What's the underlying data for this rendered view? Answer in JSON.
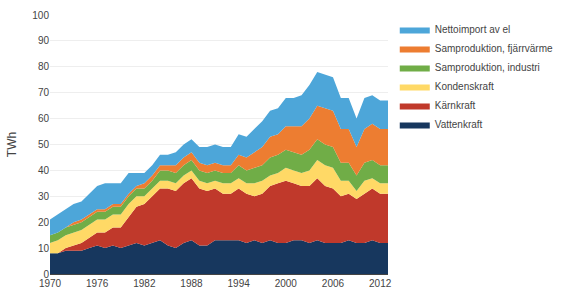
{
  "chart_data": {
    "type": "area",
    "stacked": true,
    "ylabel": "TWh",
    "x": [
      1970,
      1971,
      1972,
      1973,
      1974,
      1975,
      1976,
      1977,
      1978,
      1979,
      1980,
      1981,
      1982,
      1983,
      1984,
      1985,
      1986,
      1987,
      1988,
      1989,
      1990,
      1991,
      1992,
      1993,
      1994,
      1995,
      1996,
      1997,
      1998,
      1999,
      2000,
      2001,
      2002,
      2003,
      2004,
      2005,
      2006,
      2007,
      2008,
      2009,
      2010,
      2011,
      2012,
      2013
    ],
    "series": [
      {
        "name": "Vattenkraft",
        "color": "#17375e",
        "values": [
          8,
          8,
          9,
          9,
          9,
          10,
          11,
          10,
          11,
          10,
          11,
          12,
          11,
          12,
          13,
          11,
          10,
          12,
          13,
          11,
          11,
          13,
          13,
          13,
          13,
          12,
          13,
          12,
          13,
          12,
          12,
          13,
          13,
          12,
          13,
          12,
          12,
          12,
          13,
          12,
          12,
          13,
          12,
          12
        ]
      },
      {
        "name": "Kärnkraft",
        "color": "#c0392b",
        "values": [
          0,
          0,
          1,
          2,
          3,
          4,
          5,
          6,
          7,
          8,
          11,
          14,
          16,
          18,
          20,
          22,
          22,
          23,
          24,
          22,
          21,
          20,
          18,
          18,
          20,
          19,
          17,
          19,
          21,
          23,
          24,
          22,
          21,
          22,
          24,
          22,
          21,
          18,
          18,
          17,
          19,
          20,
          19,
          19
        ]
      },
      {
        "name": "Kondenskraft",
        "color": "#ffd966",
        "values": [
          4,
          5,
          5,
          5,
          5,
          5,
          5,
          5,
          5,
          5,
          5,
          4,
          3,
          3,
          3,
          3,
          3,
          3,
          3,
          3,
          3,
          3,
          4,
          4,
          4,
          4,
          5,
          5,
          4,
          4,
          5,
          5,
          5,
          6,
          7,
          8,
          8,
          6,
          5,
          3,
          5,
          4,
          4,
          4
        ]
      },
      {
        "name": "Samproduktion, industri",
        "color": "#70ad47",
        "values": [
          3,
          3,
          3,
          3,
          3,
          3,
          3,
          3,
          3,
          3,
          3,
          3,
          3,
          3,
          4,
          4,
          4,
          4,
          4,
          4,
          4,
          4,
          4,
          4,
          5,
          5,
          6,
          6,
          7,
          7,
          7,
          7,
          7,
          8,
          8,
          8,
          8,
          7,
          7,
          6,
          7,
          7,
          7,
          7
        ]
      },
      {
        "name": "Samproduktion, fjärrvärme",
        "color": "#ed7d31",
        "values": [
          0,
          0,
          0,
          1,
          1,
          1,
          1,
          1,
          1,
          1,
          1,
          1,
          2,
          2,
          2,
          2,
          3,
          3,
          3,
          3,
          3,
          3,
          3,
          3,
          4,
          5,
          6,
          7,
          8,
          8,
          9,
          10,
          11,
          12,
          13,
          14,
          14,
          13,
          13,
          11,
          13,
          14,
          14,
          14
        ]
      },
      {
        "name": "Nettoimport av el",
        "color": "#4da6d9",
        "values": [
          6,
          7,
          7,
          7,
          7,
          8,
          9,
          10,
          8,
          8,
          8,
          5,
          4,
          4,
          4,
          4,
          5,
          5,
          5,
          6,
          7,
          7,
          7,
          7,
          8,
          8,
          9,
          10,
          10,
          10,
          11,
          11,
          12,
          13,
          13,
          13,
          13,
          12,
          12,
          11,
          12,
          11,
          11,
          11
        ]
      }
    ],
    "xlim": [
      1970,
      2013
    ],
    "xticks": [
      1970,
      1976,
      1982,
      1988,
      1994,
      2000,
      2006,
      2012
    ],
    "ylim": [
      0,
      100
    ],
    "yticks": [
      0,
      10,
      20,
      30,
      40,
      50,
      60,
      70,
      80,
      90,
      100
    ],
    "grid": "y"
  }
}
